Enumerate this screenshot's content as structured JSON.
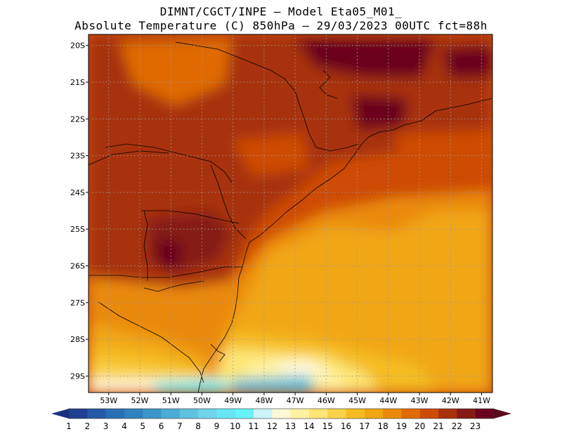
{
  "header": {
    "line1": "DIMNT/CGCT/INPE –  Model Eta05_M01_",
    "line2": "Absolute Temperature (C) 850hPa –  29/03/2023 00UTC fct=88h"
  },
  "axes": {
    "lat_labels": [
      "20S",
      "21S",
      "22S",
      "23S",
      "24S",
      "25S",
      "26S",
      "27S",
      "28S",
      "29S"
    ],
    "lon_labels": [
      "53W",
      "52W",
      "51W",
      "50W",
      "49W",
      "48W",
      "47W",
      "46W",
      "45W",
      "44W",
      "43W",
      "42W",
      "41W"
    ],
    "lat_values": [
      -20,
      -21,
      -22,
      -23,
      -24,
      -25,
      -26,
      -27,
      -28,
      -29
    ],
    "lon_values": [
      -53,
      -52,
      -51,
      -50,
      -49,
      -48,
      -47,
      -46,
      -45,
      -44,
      -43,
      -42,
      -41
    ],
    "lat_range": [
      -29.45,
      -19.7
    ],
    "lon_range": [
      -53.65,
      -40.65
    ]
  },
  "colorbar": {
    "labels": [
      "1",
      "2",
      "3",
      "4",
      "5",
      "6",
      "7",
      "8",
      "9",
      "10",
      "11",
      "12",
      "13",
      "14",
      "15",
      "16",
      "17",
      "18",
      "19",
      "20",
      "21",
      "22",
      "23"
    ],
    "colors": [
      "#1f3f90",
      "#235aa5",
      "#2a6fb3",
      "#3181bd",
      "#3c95c8",
      "#4cabd4",
      "#5fc2de",
      "#6fd4e8",
      "#68e4f2",
      "#68f2fa",
      "#cdf3fa",
      "#fef7d8",
      "#fff2a0",
      "#fde676",
      "#f9d24a",
      "#f5bc22",
      "#f1a612",
      "#ea8a08",
      "#e06a04",
      "#cd4b04",
      "#a8300c",
      "#861a14",
      "#6b001e"
    ],
    "under_color": "#1b2f80",
    "over_color": "#5a0a1a"
  },
  "colors": {
    "grid": "#9a9a9a",
    "coast": "#000000"
  }
}
